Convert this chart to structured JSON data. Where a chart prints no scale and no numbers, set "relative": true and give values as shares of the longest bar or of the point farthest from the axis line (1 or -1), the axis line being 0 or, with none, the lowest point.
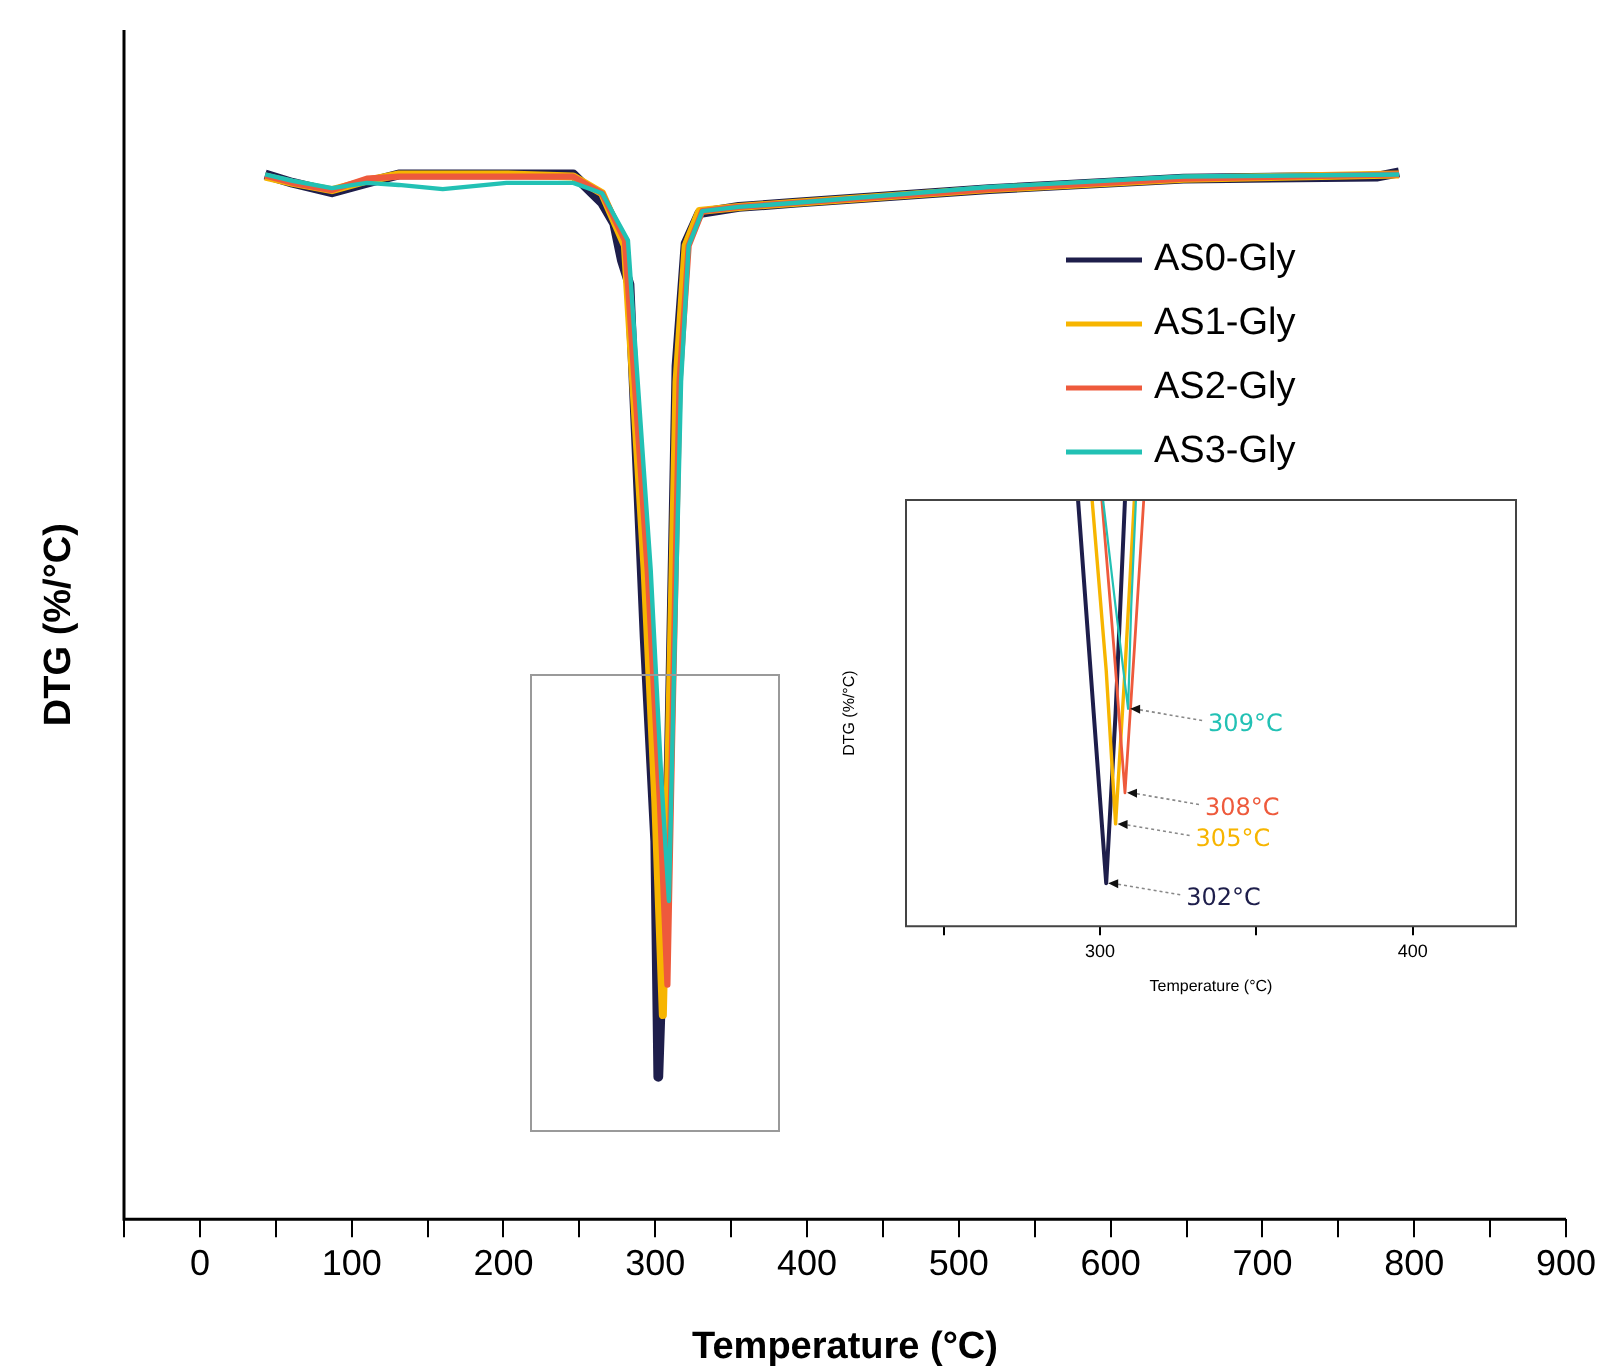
{
  "chart_data": [
    {
      "type": "line",
      "xlabel": "Temperature (°C)",
      "ylabel": "DTG (%/°C)",
      "relative": true,
      "marker": "none",
      "legend": "top right",
      "xlim": [
        -50,
        900
      ],
      "xticks": [
        {
          "value": -50,
          "label": null
        },
        0,
        {
          "value": 50,
          "label": null
        },
        100,
        {
          "value": 150,
          "label": null
        },
        200,
        {
          "value": 250,
          "label": null
        },
        300,
        {
          "value": 350,
          "label": null
        },
        400,
        {
          "value": 450,
          "label": null
        },
        500,
        {
          "value": 550,
          "label": null
        },
        600,
        {
          "value": 650,
          "label": null
        },
        700,
        {
          "value": 750,
          "label": null
        },
        800,
        {
          "value": 850,
          "label": null
        },
        900
      ],
      "series": [
        {
          "name": "AS0-Gly",
          "color": "#1e1e4b",
          "x": [
            43,
            61,
            87,
            110,
            131,
            202,
            246,
            265,
            273,
            278,
            283,
            293,
            300,
            302,
            309,
            314,
            320,
            329,
            355,
            393,
            520,
            648,
            776,
            790
          ],
          "values": [
            0.998,
            0.99,
            0.981,
            0.99,
            0.998,
            0.998,
            0.998,
            0.971,
            0.951,
            0.916,
            0.893,
            0.556,
            0.361,
            0.136,
            0.439,
            0.815,
            0.932,
            0.961,
            0.967,
            0.971,
            0.984,
            0.994,
            0.996,
            1
          ]
        },
        {
          "name": "AS1-Gly",
          "color": "#f7b500",
          "x": [
            43,
            61,
            87,
            110,
            131,
            202,
            246,
            265,
            280,
            293,
            300,
            305,
            309,
            314,
            320,
            329,
            355,
            393,
            520,
            648,
            790
          ],
          "values": [
            0.996,
            0.99,
            0.983,
            0.992,
            0.998,
            0.998,
            0.996,
            0.98,
            0.93,
            0.62,
            0.4,
            0.195,
            0.45,
            0.8,
            0.93,
            0.963,
            0.967,
            0.971,
            0.984,
            0.994,
            0.998
          ]
        },
        {
          "name": "AS2-Gly",
          "color": "#ee5a3c",
          "x": [
            43,
            61,
            87,
            110,
            131,
            202,
            246,
            265,
            280,
            295,
            303,
            308,
            311,
            316,
            322,
            331,
            355,
            393,
            520,
            648,
            790
          ],
          "values": [
            0.997,
            0.99,
            0.983,
            0.994,
            0.996,
            0.996,
            0.996,
            0.98,
            0.935,
            0.62,
            0.4,
            0.224,
            0.45,
            0.8,
            0.93,
            0.963,
            0.967,
            0.971,
            0.984,
            0.994,
            0.998
          ]
        },
        {
          "name": "AS3-Gly",
          "color": "#22c1b4",
          "x": [
            43,
            61,
            87,
            110,
            131,
            160,
            202,
            246,
            265,
            282,
            297,
            304,
            309,
            312,
            317,
            322,
            331,
            355,
            393,
            520,
            648,
            790
          ],
          "values": [
            0.998,
            0.992,
            0.985,
            0.99,
            0.988,
            0.984,
            0.99,
            0.99,
            0.98,
            0.935,
            0.62,
            0.42,
            0.304,
            0.5,
            0.8,
            0.93,
            0.963,
            0.967,
            0.971,
            0.986,
            0.996,
            0.998
          ]
        }
      ]
    },
    {
      "type": "line",
      "xlabel": "Temperature (°C)",
      "ylabel": "DTG (%/°C)",
      "relative": true,
      "marker": "none",
      "xlim": [
        238,
        433
      ],
      "xticks": [
        {
          "value": 250,
          "label": null
        },
        300,
        {
          "value": 350,
          "label": null
        },
        400
      ],
      "series": [
        {
          "color": "#1e1e4b",
          "x": [
            293,
            298,
            302,
            305,
            308
          ],
          "values": [
            1,
            0.5,
            0.101,
            0.5,
            1
          ]
        },
        {
          "color": "#f7b500",
          "x": [
            297.5,
            302,
            305,
            308,
            311
          ],
          "values": [
            1,
            0.6,
            0.24,
            0.6,
            1
          ]
        },
        {
          "color": "#ee5a3c",
          "x": [
            300.6,
            304.5,
            308,
            311,
            314
          ],
          "values": [
            1,
            0.649,
            0.313,
            0.65,
            1
          ]
        },
        {
          "color": "#22c1b4",
          "x": [
            301,
            305,
            309,
            310,
            311.5
          ],
          "values": [
            1,
            0.75,
            0.51,
            0.75,
            1
          ]
        }
      ],
      "annotations": [
        {
          "text": "309°C",
          "x": 309,
          "y": 0.51
        },
        {
          "text": "308°C",
          "x": 308,
          "y": 0.313
        },
        {
          "text": "305°C",
          "x": 305,
          "y": 0.24
        },
        {
          "text": "302°C",
          "x": 302,
          "y": 0.101
        }
      ]
    }
  ]
}
